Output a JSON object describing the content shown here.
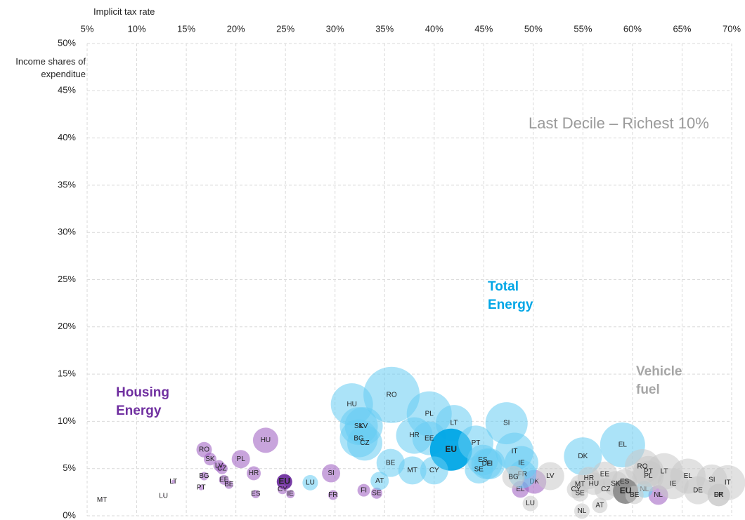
{
  "chart_data": {
    "type": "bubble",
    "x_label": "Implicit tax rate",
    "y_label": "Income shares of expenditue",
    "annotation": "Last Decile – Richest 10%",
    "xlim": [
      5,
      70
    ],
    "xticks": [
      {
        "value": 5,
        "label": "5%"
      },
      {
        "value": 10,
        "label": "10%"
      },
      {
        "value": 15,
        "label": "15%"
      },
      {
        "value": 20,
        "label": "20%"
      },
      {
        "value": 25,
        "label": "25%"
      },
      {
        "value": 30,
        "label": "30%"
      },
      {
        "value": 35,
        "label": "35%"
      },
      {
        "value": 40,
        "label": "40%"
      },
      {
        "value": 45,
        "label": "45%"
      },
      {
        "value": 50,
        "label": "50%"
      },
      {
        "value": 55,
        "label": "55%"
      },
      {
        "value": 60,
        "label": "60%"
      },
      {
        "value": 65,
        "label": "65%"
      },
      {
        "value": 70,
        "label": "70%"
      }
    ],
    "ylim": [
      0,
      50
    ],
    "yticks": [
      {
        "value": 0,
        "label": "0%"
      },
      {
        "value": 5,
        "label": "5%"
      },
      {
        "value": 10,
        "label": "10%"
      },
      {
        "value": 15,
        "label": "15%"
      },
      {
        "value": 20,
        "label": "20%"
      },
      {
        "value": 25,
        "label": "25%"
      },
      {
        "value": 30,
        "label": "30%"
      },
      {
        "value": 35,
        "label": "35%"
      },
      {
        "value": 40,
        "label": "40%"
      },
      {
        "value": 45,
        "label": "45%"
      },
      {
        "value": 50,
        "label": "50%"
      }
    ],
    "grid": true,
    "series": [
      {
        "name": "Housing Energy",
        "color": "#9b59c0",
        "highlight": 15,
        "highlight_color": "#7030a0",
        "label_color": "#7030a0",
        "labels": [
          "MT",
          "LU",
          "LT",
          "PT",
          "BG",
          "RO",
          "SK",
          "LV",
          "CZ",
          "EE",
          "BE",
          "PL",
          "HR",
          "HU",
          "ES",
          "EU",
          "CY",
          "IE",
          "SI",
          "FR",
          "FI",
          "SE",
          "DK",
          "EL",
          "NL"
        ],
        "x": [
          6.5,
          12.7,
          13.7,
          16.5,
          16.8,
          16.8,
          17.4,
          18.3,
          18.6,
          18.8,
          19.3,
          20.5,
          21.8,
          23.0,
          22.0,
          24.9,
          24.7,
          25.5,
          29.6,
          29.8,
          32.9,
          34.2,
          50.1,
          48.7,
          62.6
        ],
        "y": [
          1.7,
          2.1,
          3.6,
          3.0,
          4.2,
          7.0,
          6.0,
          5.3,
          5.0,
          3.8,
          3.3,
          6.0,
          4.5,
          8.0,
          2.3,
          3.6,
          2.8,
          2.3,
          4.5,
          2.2,
          2.7,
          2.4,
          3.6,
          2.8,
          2.2
        ],
        "sizes": [
          1,
          1,
          3,
          4,
          6,
          11,
          9,
          8,
          8,
          7,
          6,
          13,
          10,
          18,
          6,
          11,
          7,
          6,
          13,
          7,
          9,
          8,
          17,
          12,
          14
        ]
      },
      {
        "name": "Total Energy",
        "color": "#66ccf2",
        "highlight": 10,
        "highlight_color": "#00a6e6",
        "label_color": "#ffffff",
        "labels": [
          "HU",
          "RO",
          "PL",
          "SK",
          "LV",
          "BG",
          "CZ",
          "HR",
          "EE",
          "LT",
          "EU",
          "SI",
          "PT",
          "IT",
          "ES",
          "DE",
          "FI",
          "SE",
          "IE",
          "FR",
          "BE",
          "MT",
          "CY",
          "AT",
          "LU",
          "DK",
          "EL",
          "NL"
        ],
        "x": [
          31.7,
          35.7,
          39.5,
          32.4,
          32.9,
          32.4,
          33.0,
          38.0,
          39.5,
          42.0,
          41.7,
          47.3,
          44.2,
          48.1,
          44.9,
          45.3,
          45.6,
          44.5,
          48.8,
          48.9,
          35.6,
          37.8,
          40.0,
          34.5,
          27.5,
          55.0,
          59.0,
          61.2
        ],
        "y": [
          11.8,
          12.8,
          10.8,
          9.5,
          9.5,
          8.2,
          7.7,
          8.5,
          8.2,
          9.8,
          7.0,
          9.8,
          7.7,
          6.8,
          5.9,
          5.5,
          5.5,
          4.9,
          5.6,
          4.4,
          5.6,
          4.8,
          4.8,
          3.7,
          3.5,
          6.3,
          7.5,
          2.8
        ],
        "sizes": [
          30,
          40,
          32,
          27,
          27,
          27,
          25,
          26,
          24,
          26,
          30,
          30,
          25,
          27,
          22,
          22,
          22,
          20,
          24,
          20,
          20,
          20,
          20,
          13,
          11,
          27,
          32,
          12
        ]
      },
      {
        "name": "Vehicle fuel",
        "color": "#c8c8c8",
        "highlight": 14,
        "highlight_color": "#8c8c8c",
        "label_color": "#333333",
        "labels": [
          "LV",
          "BG",
          "LU",
          "NL",
          "AT",
          "SE",
          "MT",
          "CY",
          "HR",
          "HU",
          "EE",
          "CZ",
          "SK",
          "ES",
          "EU",
          "BE",
          "RO",
          "PT",
          "PL",
          "LT",
          "IE",
          "EL",
          "DE",
          "SI",
          "FR",
          "DK",
          "IT"
        ],
        "x": [
          51.7,
          48.0,
          49.7,
          54.9,
          56.7,
          54.7,
          54.7,
          54.3,
          55.6,
          56.1,
          57.2,
          57.3,
          58.3,
          59.2,
          59.3,
          60.2,
          61.0,
          61.6,
          61.6,
          63.2,
          64.1,
          65.6,
          66.6,
          68.0,
          68.7,
          68.7,
          69.6
        ],
        "y": [
          4.2,
          4.1,
          1.3,
          0.5,
          1.1,
          2.4,
          3.3,
          2.8,
          4.0,
          3.4,
          4.4,
          2.8,
          3.4,
          3.6,
          2.6,
          2.2,
          5.2,
          4.7,
          4.2,
          4.7,
          3.4,
          4.2,
          2.7,
          3.8,
          2.2,
          2.2,
          3.5
        ],
        "sizes": [
          20,
          16,
          11,
          11,
          11,
          12,
          14,
          13,
          16,
          16,
          18,
          16,
          18,
          18,
          18,
          13,
          25,
          22,
          22,
          26,
          22,
          25,
          20,
          22,
          16,
          16,
          25
        ]
      }
    ]
  }
}
